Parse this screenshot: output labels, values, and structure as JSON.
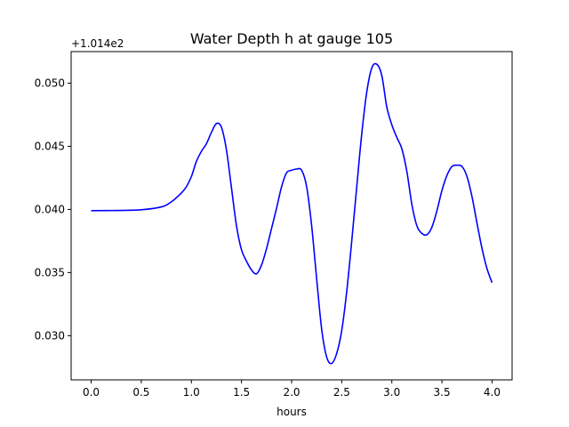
{
  "chart_data": {
    "type": "line",
    "title": "Water Depth h at gauge 105",
    "xlabel": "hours",
    "ylabel": "",
    "y_offset_label": "+1.014e2",
    "xlim": [
      -0.2,
      4.2
    ],
    "ylim": [
      0.0265,
      0.0525
    ],
    "grid": false,
    "x_ticks": [
      0.0,
      0.5,
      1.0,
      1.5,
      2.0,
      2.5,
      3.0,
      3.5,
      4.0
    ],
    "x_tick_labels": [
      "0.0",
      "0.5",
      "1.0",
      "1.5",
      "2.0",
      "2.5",
      "3.0",
      "3.5",
      "4.0"
    ],
    "y_ticks": [
      0.03,
      0.035,
      0.04,
      0.045,
      0.05
    ],
    "y_tick_labels": [
      "0.030",
      "0.035",
      "0.040",
      "0.045",
      "0.050"
    ],
    "series": [
      {
        "color": "#0000ff",
        "x": [
          0.0,
          0.3,
          0.5,
          0.7,
          0.8,
          0.9,
          0.95,
          1.0,
          1.05,
          1.1,
          1.15,
          1.2,
          1.25,
          1.3,
          1.35,
          1.4,
          1.45,
          1.5,
          1.55,
          1.6,
          1.65,
          1.7,
          1.75,
          1.8,
          1.85,
          1.9,
          1.95,
          2.0,
          2.05,
          2.1,
          2.15,
          2.2,
          2.25,
          2.3,
          2.35,
          2.4,
          2.45,
          2.5,
          2.55,
          2.6,
          2.65,
          2.7,
          2.75,
          2.8,
          2.85,
          2.9,
          2.95,
          3.0,
          3.05,
          3.1,
          3.15,
          3.2,
          3.25,
          3.3,
          3.35,
          3.4,
          3.45,
          3.5,
          3.55,
          3.6,
          3.65,
          3.7,
          3.75,
          3.8,
          3.85,
          3.9,
          3.95,
          4.0
        ],
        "y": [
          0.0399,
          0.03992,
          0.03997,
          0.0402,
          0.0406,
          0.0413,
          0.0418,
          0.0426,
          0.0438,
          0.0446,
          0.0452,
          0.0461,
          0.0468,
          0.0465,
          0.0447,
          0.0417,
          0.0387,
          0.0368,
          0.0359,
          0.0352,
          0.0349,
          0.0356,
          0.0369,
          0.0385,
          0.0401,
          0.0418,
          0.0429,
          0.0431,
          0.0432,
          0.0431,
          0.0418,
          0.0387,
          0.0345,
          0.0305,
          0.0283,
          0.0278,
          0.0286,
          0.0304,
          0.0335,
          0.0375,
          0.0418,
          0.046,
          0.0493,
          0.0512,
          0.0515,
          0.0506,
          0.0481,
          0.0467,
          0.0457,
          0.0448,
          0.043,
          0.0404,
          0.0387,
          0.0381,
          0.038,
          0.0386,
          0.0399,
          0.0415,
          0.0427,
          0.0434,
          0.0435,
          0.0434,
          0.0426,
          0.041,
          0.0389,
          0.0369,
          0.0353,
          0.0342
        ]
      }
    ]
  }
}
